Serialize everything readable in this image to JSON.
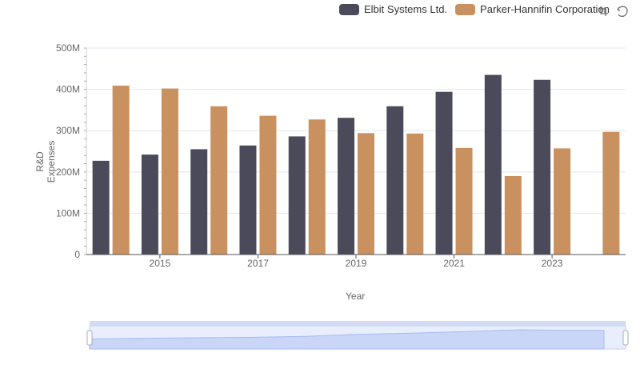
{
  "legend": {
    "items": [
      {
        "label": "Elbit Systems Ltd.",
        "color": "#4a4a5a"
      },
      {
        "label": "Parker-Hannifin Corporation",
        "color": "#c8915f"
      }
    ]
  },
  "toolbox": {
    "icons": [
      "zoom-icon",
      "restore-icon"
    ]
  },
  "chart_data": {
    "type": "bar",
    "x": [
      2014,
      2015,
      2016,
      2017,
      2018,
      2019,
      2020,
      2021,
      2022,
      2023,
      2024
    ],
    "x_tick_labels": [
      "2015",
      "2017",
      "2019",
      "2021",
      "2023"
    ],
    "series": [
      {
        "name": "Elbit Systems Ltd.",
        "color": "#4a4a5a",
        "values": [
          227,
          242,
          255,
          264,
          286,
          331,
          359,
          394,
          435,
          423,
          null
        ]
      },
      {
        "name": "Parker-Hannifin Corporation",
        "color": "#c8915f",
        "values": [
          409,
          402,
          359,
          336,
          327,
          294,
          293,
          258,
          190,
          257,
          297
        ]
      }
    ],
    "xlabel": "Year",
    "ylabel": "R&D Expenses",
    "ylim": [
      0,
      500
    ],
    "y_ticks": [
      0,
      100,
      200,
      300,
      400,
      500
    ],
    "y_tick_labels": [
      "0",
      "100M",
      "200M",
      "300M",
      "400M",
      "500M"
    ],
    "grid": true,
    "legend_position": "top-right"
  }
}
